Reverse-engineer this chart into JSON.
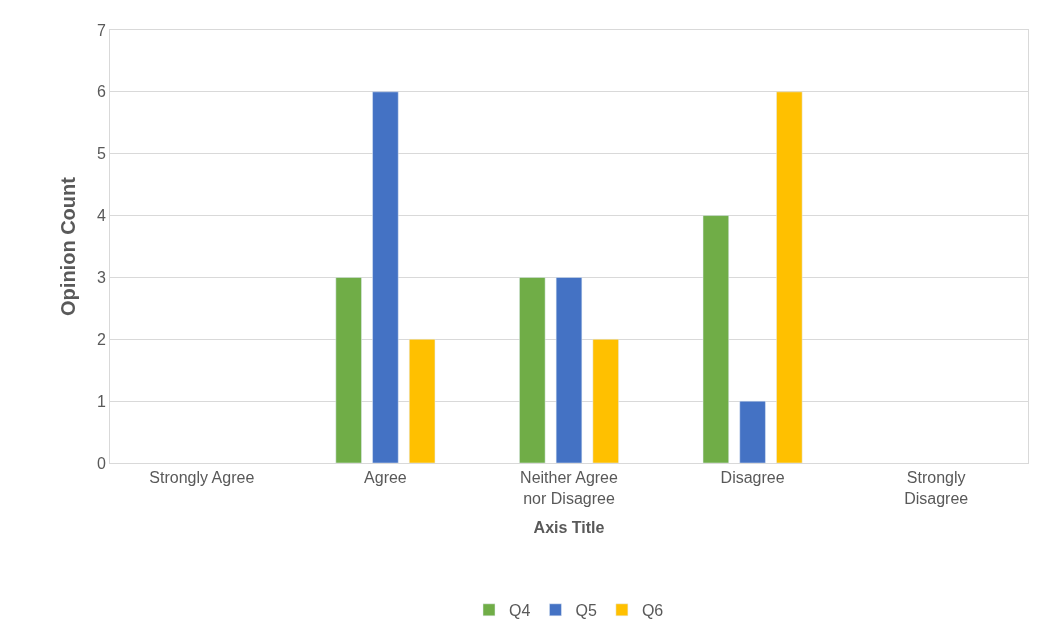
{
  "chart_data": {
    "type": "bar",
    "xlabel": "Axis Title",
    "ylabel": "Opinion Count",
    "categories": [
      "Strongly Agree",
      "Agree",
      "Neither Agree\nnor Disagree",
      "Disagree",
      "Strongly\nDisagree"
    ],
    "series": [
      {
        "name": "Q4",
        "color": "#70ad47",
        "values": [
          null,
          3,
          3,
          4,
          null
        ]
      },
      {
        "name": "Q5",
        "color": "#4472c4",
        "values": [
          null,
          6,
          3,
          1,
          null
        ]
      },
      {
        "name": "Q6",
        "color": "#ffc000",
        "values": [
          null,
          2,
          2,
          6,
          null
        ]
      }
    ],
    "ylim": [
      0,
      7
    ],
    "yticks": [
      0,
      1,
      2,
      3,
      4,
      5,
      6,
      7
    ],
    "grid": "y",
    "legend": "bottom"
  }
}
